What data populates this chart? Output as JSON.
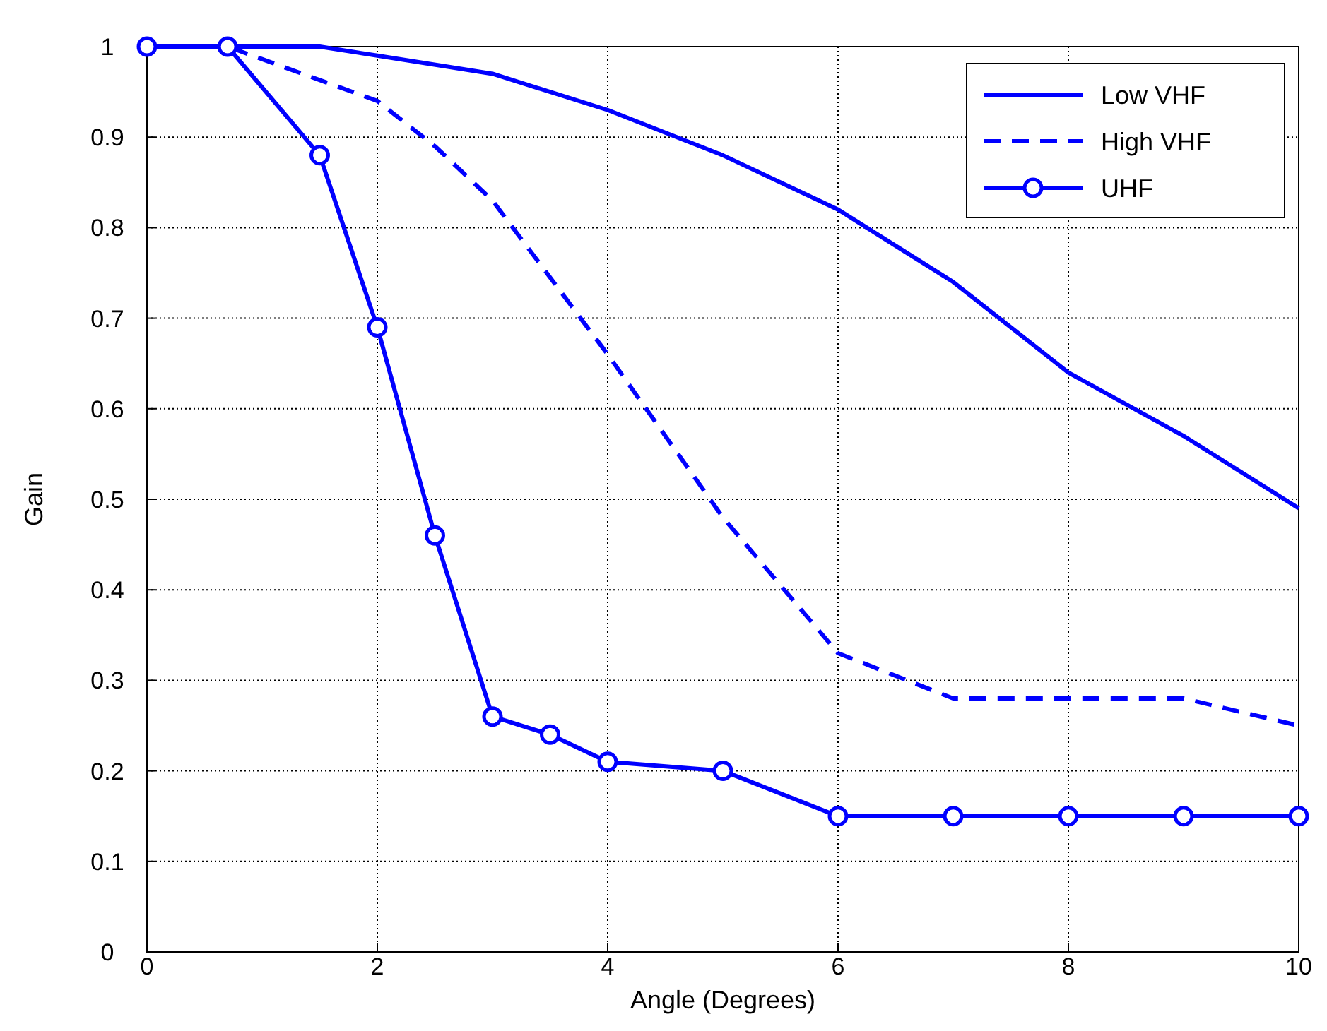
{
  "chart_data": {
    "type": "line",
    "xlabel": "Angle (Degrees)",
    "ylabel": "Gain",
    "xlim": [
      0,
      10
    ],
    "ylim": [
      0,
      1
    ],
    "xticks": [
      0,
      2,
      4,
      6,
      8,
      10
    ],
    "yticks": [
      0,
      0.1,
      0.2,
      0.3,
      0.4,
      0.5,
      0.6,
      0.7,
      0.8,
      0.9,
      1
    ],
    "grid": true,
    "legend": "top right",
    "series": [
      {
        "name": "Low VHF",
        "color": "#0000ff",
        "line_style": "solid",
        "marker": "none",
        "x": [
          0,
          0.7,
          1.5,
          2,
          3,
          4,
          5,
          6,
          7,
          8,
          9,
          10
        ],
        "values": [
          1,
          1,
          1,
          0.99,
          0.97,
          0.93,
          0.88,
          0.82,
          0.74,
          0.64,
          0.57,
          0.49
        ]
      },
      {
        "name": "High VHF",
        "color": "#0000ff",
        "line_style": "dashed",
        "marker": "none",
        "x": [
          0,
          0.7,
          2,
          2.5,
          3,
          4,
          5,
          6,
          7,
          8,
          9,
          10
        ],
        "values": [
          1,
          1,
          0.94,
          0.89,
          0.83,
          0.66,
          0.48,
          0.33,
          0.28,
          0.28,
          0.28,
          0.25
        ]
      },
      {
        "name": "UHF",
        "color": "#0000ff",
        "line_style": "solid",
        "marker": "circle",
        "x": [
          0,
          0.7,
          1.5,
          2,
          2.5,
          3,
          3.5,
          4,
          5,
          6,
          7,
          8,
          9,
          10
        ],
        "values": [
          1,
          1,
          0.88,
          0.69,
          0.46,
          0.26,
          0.24,
          0.21,
          0.2,
          0.15,
          0.15,
          0.15,
          0.15,
          0.15
        ]
      }
    ]
  }
}
